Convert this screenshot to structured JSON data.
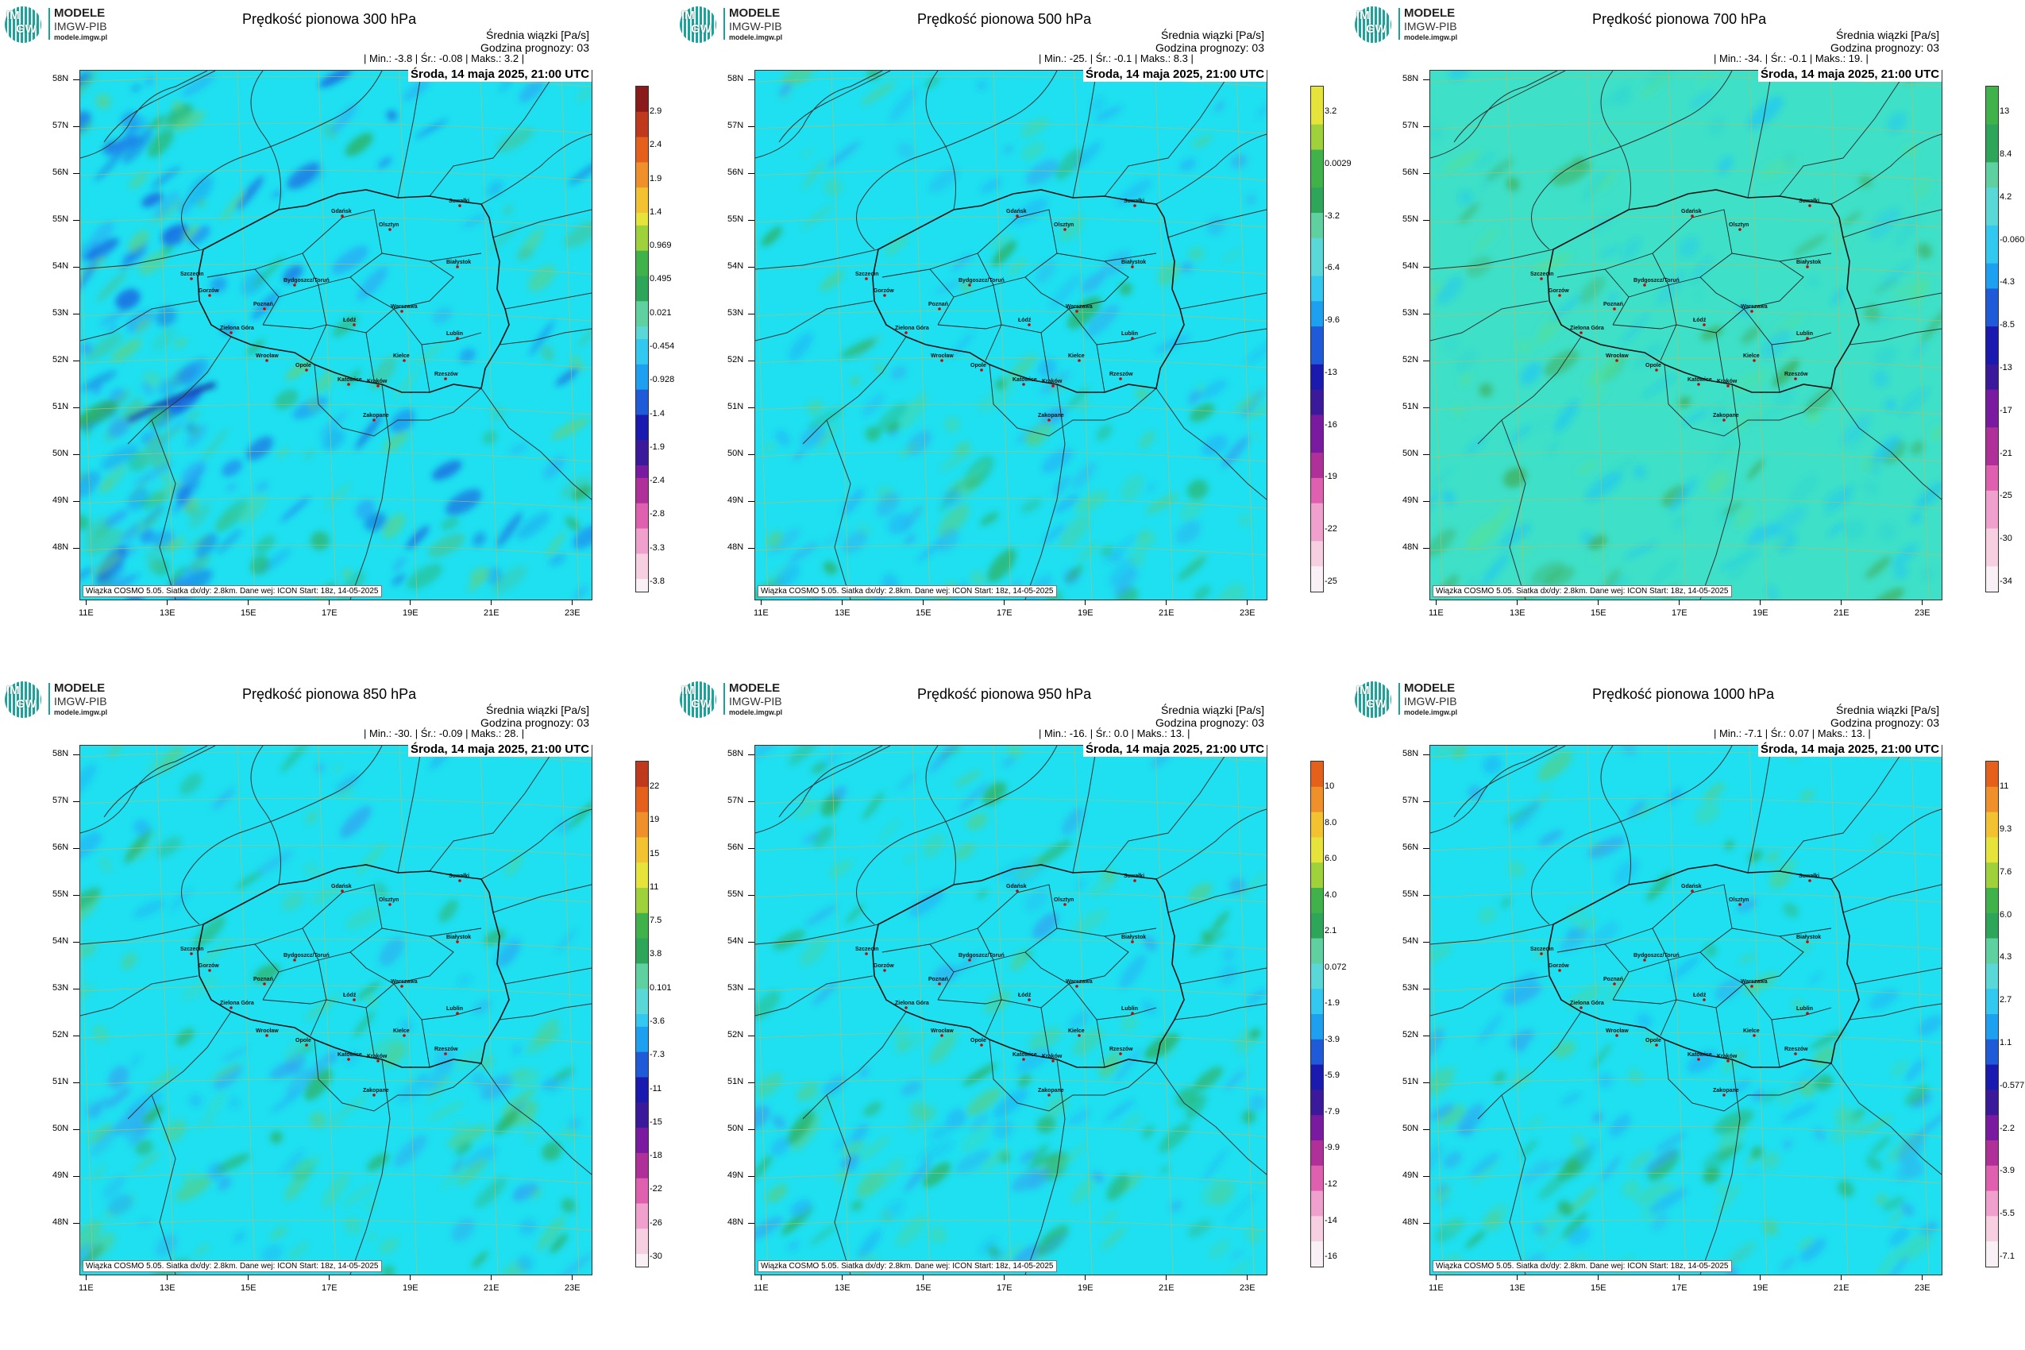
{
  "logo": {
    "line1": "MODELE",
    "line2": "IMGW-PIB",
    "line3": "modele.imgw.pl",
    "badge_im": "IM",
    "badge_gw": "GW"
  },
  "common": {
    "unit_label": "Średnia wiązki [Pa/s]",
    "forecast_hour": "Godzina prognozy: 03",
    "date": "Środa, 14 maja 2025, 21:00 UTC",
    "footer": "Wiązka COSMO 5.05. Siatka dx/dy: 2.8km. Dane wej: ICON Start: 18z, 14-05-2025",
    "lat_labels": [
      "58N",
      "57N",
      "56N",
      "55N",
      "54N",
      "53N",
      "52N",
      "51N",
      "50N",
      "49N",
      "48N"
    ],
    "lon_labels": [
      "11E",
      "13E",
      "15E",
      "17E",
      "19E",
      "21E",
      "23E"
    ],
    "cities": [
      "Gdańsk",
      "Suwałki",
      "Olsztyn",
      "Szczecin",
      "Białystok",
      "Bydgoszcz/Toruń",
      "Gorzów",
      "Poznań",
      "Warszawa",
      "Zielona Góra",
      "Łódź",
      "Lublin",
      "Wrocław",
      "Kielce",
      "Opole",
      "Rzeszów",
      "Katowice",
      "Kraków",
      "Zakopane"
    ]
  },
  "panels": [
    {
      "title": "Prędkość pionowa 300 hPa",
      "stats": "| Min.:   -3.8 | Śr.:   -0.08 | Maks.:     3.2 |",
      "colorbar": [
        "2.9",
        "2.4",
        "1.9",
        "1.4",
        "0.969",
        "0.495",
        "0.021",
        "-0.454",
        "-0.928",
        "-1.4",
        "-1.9",
        "-2.4",
        "-2.8",
        "-3.3",
        "-3.8"
      ]
    },
    {
      "title": "Prędkość pionowa 500 hPa",
      "stats": "| Min.:   -25. | Śr.:    -0.1 | Maks.:     8.3 |",
      "colorbar": [
        "3.2",
        "0.0029",
        "-3.2",
        "-6.4",
        "-9.6",
        "-13",
        "-16",
        "-19",
        "-22",
        "-25"
      ]
    },
    {
      "title": "Prędkość pionowa 700 hPa",
      "stats": "| Min.:   -34. | Śr.:    -0.1 | Maks.:     19. |",
      "colorbar": [
        "13",
        "8.4",
        "4.2",
        "-0.060",
        "-4.3",
        "-8.5",
        "-13",
        "-17",
        "-21",
        "-25",
        "-30",
        "-34"
      ]
    },
    {
      "title": "Prędkość pionowa 850 hPa",
      "stats": "| Min.:   -30. | Śr.:   -0.09 | Maks.:     28. |",
      "colorbar": [
        "22",
        "19",
        "15",
        "11",
        "7.5",
        "3.8",
        "0.101",
        "-3.6",
        "-7.3",
        "-11",
        "-15",
        "-18",
        "-22",
        "-26",
        "-30"
      ]
    },
    {
      "title": "Prędkość pionowa 950 hPa",
      "stats": "| Min.:   -16. | Śr.:     0.0 | Maks.:     13. |",
      "colorbar": [
        "10",
        "8.0",
        "6.0",
        "4.0",
        "2.1",
        "0.072",
        "-1.9",
        "-3.9",
        "-5.9",
        "-7.9",
        "-9.9",
        "-12",
        "-14",
        "-16"
      ]
    },
    {
      "title": "Prędkość pionowa 1000 hPa",
      "stats": "| Min.:   -7.1 | Śr.:    0.07 | Maks.:     13. |",
      "colorbar": [
        "11",
        "9.3",
        "7.6",
        "6.0",
        "4.3",
        "2.7",
        "1.1",
        "-0.577",
        "-2.2",
        "-3.9",
        "-5.5",
        "-7.1"
      ]
    }
  ]
}
